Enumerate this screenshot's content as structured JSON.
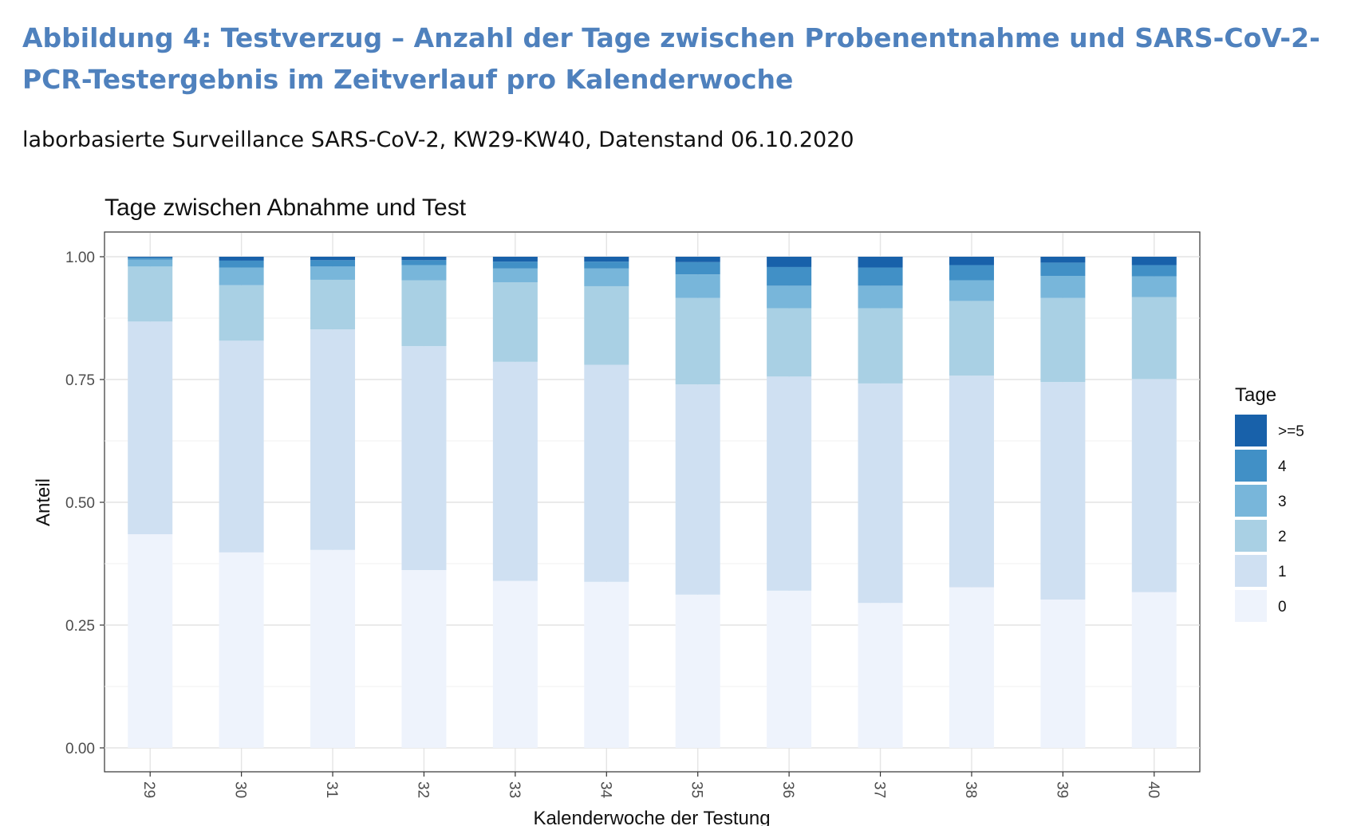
{
  "document": {
    "heading": "Abbildung 4: Testverzug – Anzahl der Tage zwischen Probenentnahme und SARS-CoV-2-PCR-Testergebnis im Zeitverlauf pro Kalenderwoche",
    "subheading": "laborbasierte Surveillance SARS-CoV-2, KW29-KW40, Datenstand 06.10.2020"
  },
  "chart_data": {
    "type": "bar",
    "stacked": true,
    "title": "Tage zwischen Abnahme und Test",
    "xlabel": "Kalenderwoche der Testung",
    "ylabel": "Anteil",
    "ylim": [
      0,
      1
    ],
    "yticks": [
      "0.00",
      "0.25",
      "0.50",
      "0.75",
      "1.00"
    ],
    "grid": true,
    "legend_title": "Tage",
    "legend_position": "right",
    "categories": [
      "29",
      "30",
      "31",
      "32",
      "33",
      "34",
      "35",
      "36",
      "37",
      "38",
      "39",
      "40"
    ],
    "series": [
      {
        "name": "0",
        "color": "#eef3fc",
        "values": [
          0.435,
          0.398,
          0.403,
          0.362,
          0.34,
          0.338,
          0.312,
          0.32,
          0.295,
          0.327,
          0.302,
          0.317
        ]
      },
      {
        "name": "1",
        "color": "#cfe0f2",
        "values": [
          0.433,
          0.431,
          0.449,
          0.456,
          0.446,
          0.442,
          0.428,
          0.436,
          0.447,
          0.431,
          0.443,
          0.434
        ]
      },
      {
        "name": "2",
        "color": "#a9d0e4",
        "values": [
          0.112,
          0.113,
          0.101,
          0.134,
          0.162,
          0.16,
          0.176,
          0.139,
          0.153,
          0.152,
          0.171,
          0.167
        ]
      },
      {
        "name": "3",
        "color": "#78b6da",
        "values": [
          0.014,
          0.036,
          0.027,
          0.031,
          0.028,
          0.036,
          0.048,
          0.046,
          0.046,
          0.042,
          0.045,
          0.042
        ]
      },
      {
        "name": "4",
        "color": "#4190c6",
        "values": [
          0.004,
          0.014,
          0.013,
          0.01,
          0.014,
          0.014,
          0.025,
          0.038,
          0.037,
          0.031,
          0.027,
          0.023
        ]
      },
      {
        "name": ">=5",
        "color": "#1861aa",
        "values": [
          0.002,
          0.008,
          0.007,
          0.007,
          0.01,
          0.01,
          0.011,
          0.021,
          0.022,
          0.017,
          0.012,
          0.017
        ]
      }
    ]
  }
}
